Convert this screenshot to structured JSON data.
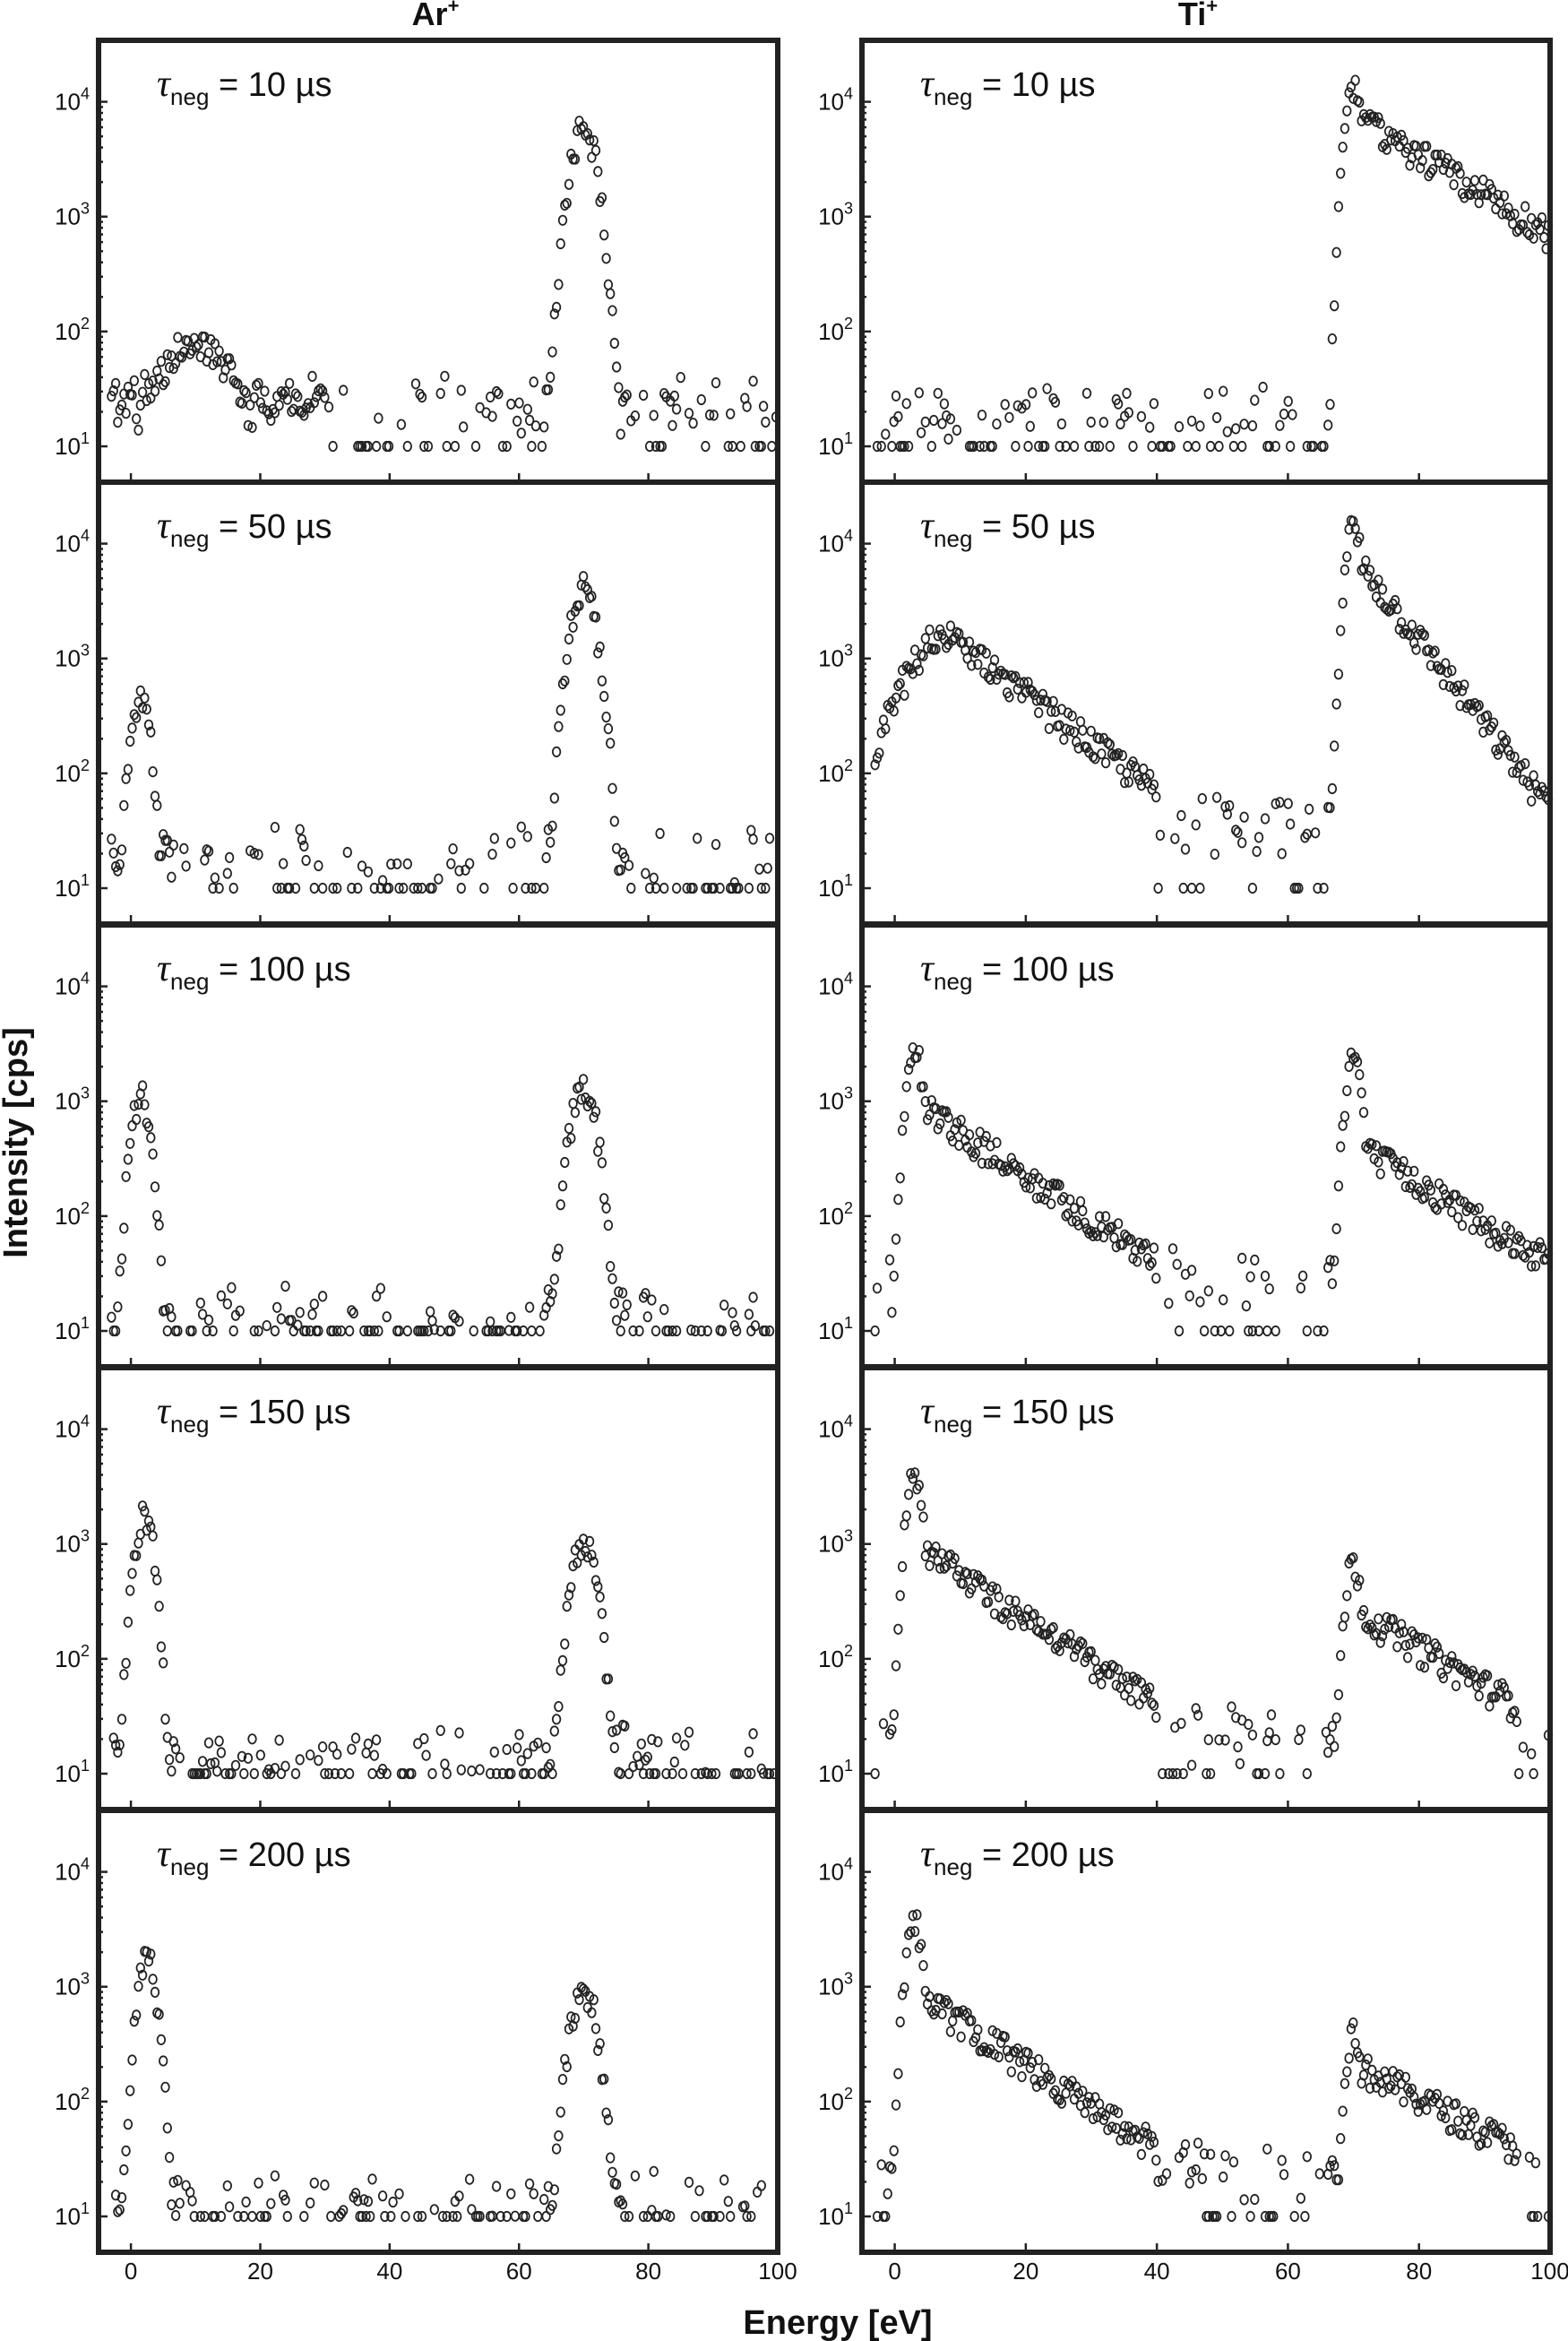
{
  "figure": {
    "columns": [
      {
        "title": "Ar",
        "sup": "+"
      },
      {
        "title": "Ti",
        "sup": "+"
      }
    ],
    "ylabel": "Intensity [cps]",
    "xlabel": "Energy [eV]",
    "xticks": [
      "0",
      "20",
      "40",
      "60",
      "80",
      "100"
    ],
    "yticks": [
      "10",
      "10",
      "10",
      "10"
    ],
    "ytick_exps": [
      "1",
      "2",
      "3",
      "4"
    ],
    "annotation_symbol": "τ",
    "annotation_sub": "neg",
    "rows": [
      {
        "label": " = 10 µs"
      },
      {
        "label": " = 50 µs"
      },
      {
        "label": " = 100 µs"
      },
      {
        "label": " = 150 µs"
      },
      {
        "label": " = 200 µs"
      }
    ]
  },
  "chart_data": {
    "type": "scatter",
    "marker": "open-circle",
    "xlabel": "Energy [eV]",
    "ylabel": "Intensity [cps]",
    "xlim": [
      -5,
      100
    ],
    "ylim": [
      10,
      20000
    ],
    "yscale": "log",
    "panels": [
      {
        "column": "Ar+",
        "tau": "10 µs",
        "peaks": [
          {
            "x": 10,
            "y": 80,
            "w": 5
          },
          {
            "x": 70,
            "y": 6000,
            "w": 1.6
          }
        ],
        "shoulders": [],
        "background": 25,
        "sparse_floor": true
      },
      {
        "column": "Ar+",
        "tau": "50 µs",
        "peaks": [
          {
            "x": 1.5,
            "y": 450,
            "w": 1.2
          },
          {
            "x": 70,
            "y": 4000,
            "w": 1.6
          }
        ],
        "shoulders": [],
        "background": 20,
        "sparse_floor": true
      },
      {
        "column": "Ar+",
        "tau": "100 µs",
        "peaks": [
          {
            "x": 1.5,
            "y": 1100,
            "w": 1.2
          },
          {
            "x": 70,
            "y": 1300,
            "w": 1.6
          }
        ],
        "shoulders": [],
        "background": 15,
        "sparse_floor": true
      },
      {
        "column": "Ar+",
        "tau": "150 µs",
        "peaks": [
          {
            "x": 2,
            "y": 1800,
            "w": 1.2
          },
          {
            "x": 70,
            "y": 1000,
            "w": 1.6
          }
        ],
        "shoulders": [],
        "background": 15,
        "sparse_floor": true
      },
      {
        "column": "Ar+",
        "tau": "200 µs",
        "peaks": [
          {
            "x": 2.5,
            "y": 1700,
            "w": 1.2
          },
          {
            "x": 70,
            "y": 1000,
            "w": 1.6
          }
        ],
        "shoulders": [],
        "background": 15,
        "sparse_floor": true
      },
      {
        "column": "Ti+",
        "tau": "10 µs",
        "peaks": [
          {
            "x": 70,
            "y": 14000,
            "w": 1.0
          }
        ],
        "shoulders": [
          {
            "x0": 70,
            "y0": 8000,
            "x1": 100,
            "y1": 700
          }
        ],
        "background": 20,
        "sparse_floor": true
      },
      {
        "column": "Ti+",
        "tau": "50 µs",
        "peaks": [
          {
            "x": 8,
            "y": 1600,
            "w": 5
          },
          {
            "x": 70,
            "y": 14000,
            "w": 1.0
          }
        ],
        "shoulders": [
          {
            "x0": 8,
            "y0": 1600,
            "x1": 40,
            "y1": 70
          },
          {
            "x0": 70,
            "y0": 8000,
            "x1": 100,
            "y1": 50
          }
        ],
        "background": 40,
        "sparse_floor": true
      },
      {
        "column": "Ti+",
        "tau": "100 µs",
        "peaks": [
          {
            "x": 3,
            "y": 3000,
            "w": 1.0
          },
          {
            "x": 70,
            "y": 2500,
            "w": 1.0
          }
        ],
        "shoulders": [
          {
            "x0": 3,
            "y0": 1000,
            "x1": 40,
            "y1": 40
          },
          {
            "x0": 71,
            "y0": 400,
            "x1": 100,
            "y1": 40
          }
        ],
        "background": 30,
        "sparse_floor": true
      },
      {
        "column": "Ti+",
        "tau": "150 µs",
        "peaks": [
          {
            "x": 3,
            "y": 4000,
            "w": 1.0
          },
          {
            "x": 70,
            "y": 700,
            "w": 1.0
          }
        ],
        "shoulders": [
          {
            "x0": 3,
            "y0": 1000,
            "x1": 40,
            "y1": 40
          },
          {
            "x0": 71,
            "y0": 250,
            "x1": 95,
            "y1": 40
          }
        ],
        "background": 25,
        "sparse_floor": true
      },
      {
        "column": "Ti+",
        "tau": "200 µs",
        "peaks": [
          {
            "x": 3,
            "y": 4000,
            "w": 1.0
          },
          {
            "x": 70,
            "y": 400,
            "w": 1.0
          }
        ],
        "shoulders": [
          {
            "x0": 3,
            "y0": 900,
            "x1": 40,
            "y1": 40
          },
          {
            "x0": 71,
            "y0": 200,
            "x1": 95,
            "y1": 40
          }
        ],
        "background": 25,
        "sparse_floor": true
      }
    ]
  }
}
